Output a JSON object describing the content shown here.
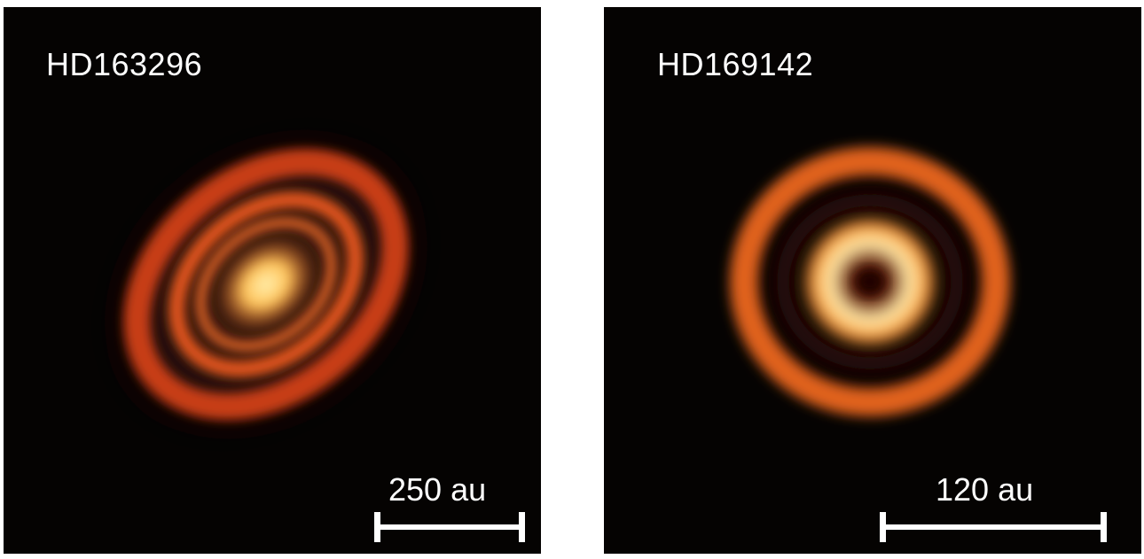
{
  "panels": [
    {
      "star": "HD163296",
      "scale_label": "250 au",
      "colors": {
        "background": "#050302",
        "ring": "#d4481c",
        "core": "#ffd27a"
      }
    },
    {
      "star": "HD169142",
      "scale_label": "120 au",
      "colors": {
        "background": "#050302",
        "ring": "#e0621e",
        "core": "#fff3c4"
      }
    }
  ]
}
